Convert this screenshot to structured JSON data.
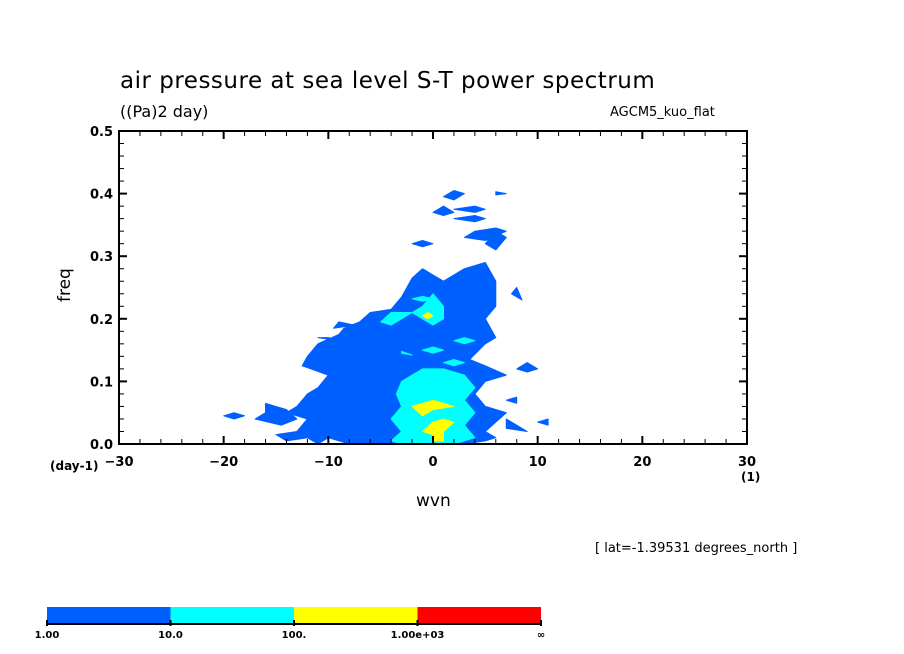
{
  "chart_data": {
    "type": "heatmap",
    "title": "air pressure at sea level S-T power spectrum",
    "units": "((Pa)2 day)",
    "model": "AGCM5_kuo_flat",
    "annotation": "[ lat=-1.39531 degrees_north ]",
    "xlabel": "wvn",
    "ylabel": "freq",
    "x_unit": "(1)",
    "y_unit": "(day-1)",
    "xlim": [
      -30,
      30
    ],
    "ylim": [
      0.0,
      0.5
    ],
    "x_ticks": [
      -30,
      -20,
      -10,
      0,
      10,
      20,
      30
    ],
    "x_tick_labels": [
      "−30",
      "−20",
      "−10",
      "0",
      "10",
      "20",
      "30"
    ],
    "y_ticks": [
      0.0,
      0.1,
      0.2,
      0.3,
      0.4,
      0.5
    ],
    "y_tick_labels": [
      "0.0",
      "0.1",
      "0.2",
      "0.3",
      "0.4",
      "0.5"
    ],
    "x_minor_step": 2,
    "y_minor_step": 0.02,
    "levels": [
      1.0,
      10.0,
      100.0,
      1000.0
    ],
    "colorbar": {
      "labels": [
        "1.00",
        "10.0",
        "100.",
        "1.00e+03",
        "∞"
      ],
      "colors": [
        "#0060ff",
        "#00ffff",
        "#ffff00",
        "#ff0000"
      ]
    },
    "regions": [
      {
        "level": "1-10",
        "color": "#0060ff",
        "polys": [
          [
            [
              -11,
              0
            ],
            [
              -10,
              0.01
            ],
            [
              -8,
              0.0
            ],
            [
              -5,
              0.0
            ],
            [
              -3,
              0.0
            ],
            [
              3,
              0.0
            ],
            [
              5,
              0.005
            ],
            [
              6,
              0.01
            ],
            [
              5,
              0.02
            ],
            [
              6,
              0.035
            ],
            [
              7,
              0.05
            ],
            [
              5,
              0.06
            ],
            [
              4,
              0.08
            ],
            [
              5,
              0.1
            ],
            [
              7,
              0.11
            ],
            [
              5,
              0.125
            ],
            [
              3.5,
              0.135
            ],
            [
              5,
              0.16
            ],
            [
              6,
              0.17
            ],
            [
              5,
              0.2
            ],
            [
              6,
              0.22
            ],
            [
              6,
              0.26
            ],
            [
              5,
              0.29
            ],
            [
              3,
              0.28
            ],
            [
              1,
              0.26
            ],
            [
              0,
              0.27
            ],
            [
              -1,
              0.28
            ],
            [
              -2,
              0.265
            ],
            [
              -3,
              0.235
            ],
            [
              -4,
              0.215
            ],
            [
              -6,
              0.21
            ],
            [
              -7,
              0.195
            ],
            [
              -8.5,
              0.185
            ],
            [
              -9,
              0.175
            ],
            [
              -11,
              0.16
            ],
            [
              -12,
              0.14
            ],
            [
              -12.5,
              0.125
            ],
            [
              -10,
              0.11
            ],
            [
              -11,
              0.09
            ],
            [
              -12,
              0.08
            ],
            [
              -13,
              0.06
            ],
            [
              -14,
              0.05
            ],
            [
              -12,
              0.04
            ],
            [
              -13,
              0.02
            ],
            [
              -15,
              0.015
            ],
            [
              -14,
              0.005
            ],
            [
              -12,
              0.01
            ]
          ],
          [
            [
              -16,
              0.065
            ],
            [
              -14,
              0.055
            ],
            [
              -13,
              0.04
            ],
            [
              -14.5,
              0.03
            ],
            [
              -17,
              0.04
            ],
            [
              -16,
              0.05
            ]
          ],
          [
            [
              -9.5,
              0.185
            ],
            [
              -7.5,
              0.19
            ],
            [
              -9,
              0.195
            ]
          ],
          [
            [
              -6,
              0.12
            ],
            [
              -4,
              0.115
            ],
            [
              -5,
              0.1
            ],
            [
              -7,
              0.105
            ]
          ],
          [
            [
              7,
              0.33
            ],
            [
              6,
              0.34
            ],
            [
              5,
              0.32
            ],
            [
              6,
              0.31
            ]
          ],
          [
            [
              3,
              0.33
            ],
            [
              5,
              0.325
            ],
            [
              7,
              0.34
            ],
            [
              6,
              0.345
            ],
            [
              4,
              0.34
            ]
          ],
          [
            [
              2,
              0.36
            ],
            [
              4,
              0.355
            ],
            [
              5,
              0.36
            ],
            [
              4,
              0.365
            ]
          ],
          [
            [
              -2,
              0.32
            ],
            [
              -1,
              0.315
            ],
            [
              0,
              0.32
            ],
            [
              -1,
              0.325
            ]
          ],
          [
            [
              2,
              0.375
            ],
            [
              4,
              0.37
            ],
            [
              5,
              0.375
            ],
            [
              4,
              0.38
            ]
          ],
          [
            [
              0,
              0.37
            ],
            [
              1,
              0.365
            ],
            [
              2,
              0.37
            ],
            [
              1,
              0.38
            ]
          ],
          [
            [
              1,
              0.395
            ],
            [
              2,
              0.39
            ],
            [
              3,
              0.4
            ],
            [
              2,
              0.405
            ]
          ],
          [
            [
              6,
              0.398
            ],
            [
              7,
              0.4
            ],
            [
              6,
              0.403
            ]
          ],
          [
            [
              7.5,
              0.24
            ],
            [
              8.5,
              0.23
            ],
            [
              8,
              0.25
            ]
          ],
          [
            [
              9,
              0.13
            ],
            [
              8,
              0.12
            ],
            [
              9,
              0.115
            ],
            [
              10,
              0.12
            ]
          ],
          [
            [
              7,
              0.07
            ],
            [
              8,
              0.065
            ],
            [
              8,
              0.075
            ]
          ],
          [
            [
              10,
              0.035
            ],
            [
              11,
              0.03
            ],
            [
              11,
              0.04
            ]
          ],
          [
            [
              7,
              0.04
            ],
            [
              8,
              0.03
            ],
            [
              9,
              0.02
            ],
            [
              7,
              0.025
            ]
          ],
          [
            [
              -19,
              0.05
            ],
            [
              -18,
              0.045
            ],
            [
              -19,
              0.04
            ],
            [
              -20,
              0.045
            ]
          ],
          [
            [
              -11,
              0.17
            ],
            [
              -9,
              0.165
            ],
            [
              -10,
              0.17
            ]
          ]
        ]
      },
      {
        "level": "10-100",
        "color": "#00ffff",
        "polys": [
          [
            [
              -3,
              0.0
            ],
            [
              2,
              0.0
            ],
            [
              4,
              0.01
            ],
            [
              3,
              0.03
            ],
            [
              4,
              0.05
            ],
            [
              3,
              0.07
            ],
            [
              4,
              0.09
            ],
            [
              3,
              0.11
            ],
            [
              1,
              0.12
            ],
            [
              -1,
              0.12
            ],
            [
              -2,
              0.11
            ],
            [
              -3,
              0.1
            ],
            [
              -3.5,
              0.08
            ],
            [
              -3,
              0.06
            ],
            [
              -4,
              0.04
            ],
            [
              -3,
              0.02
            ],
            [
              -4,
              0.005
            ]
          ],
          [
            [
              -1,
              0.2
            ],
            [
              0,
              0.19
            ],
            [
              1,
              0.2
            ],
            [
              1,
              0.22
            ],
            [
              0,
              0.24
            ],
            [
              -1,
              0.22
            ],
            [
              -2,
              0.21
            ]
          ],
          [
            [
              -4,
              0.19
            ],
            [
              -3,
              0.2
            ],
            [
              -2,
              0.21
            ],
            [
              -4,
              0.21
            ],
            [
              -5,
              0.195
            ]
          ],
          [
            [
              -2,
              0.232
            ],
            [
              -1,
              0.228
            ],
            [
              0,
              0.232
            ],
            [
              -1,
              0.236
            ]
          ],
          [
            [
              -1,
              0.15
            ],
            [
              0,
              0.145
            ],
            [
              1,
              0.15
            ],
            [
              0,
              0.155
            ]
          ],
          [
            [
              -3,
              0.145
            ],
            [
              -2,
              0.142
            ],
            [
              -3,
              0.148
            ]
          ],
          [
            [
              1,
              0.13
            ],
            [
              2,
              0.125
            ],
            [
              3,
              0.13
            ],
            [
              2,
              0.135
            ]
          ],
          [
            [
              2,
              0.165
            ],
            [
              3,
              0.16
            ],
            [
              4,
              0.165
            ],
            [
              3,
              0.17
            ]
          ]
        ]
      },
      {
        "level": "100-1000",
        "color": "#ffff00",
        "polys": [
          [
            [
              -1,
              0.065
            ],
            [
              0,
              0.07
            ],
            [
              1,
              0.065
            ],
            [
              2,
              0.06
            ],
            [
              0,
              0.055
            ],
            [
              -1,
              0.045
            ],
            [
              -2,
              0.06
            ]
          ],
          [
            [
              0,
              0.005
            ],
            [
              1,
              0.005
            ],
            [
              1,
              0.02
            ],
            [
              2,
              0.035
            ],
            [
              1,
              0.04
            ],
            [
              0,
              0.035
            ],
            [
              -1,
              0.02
            ],
            [
              0,
              0.015
            ]
          ],
          [
            [
              -1,
              0.205
            ],
            [
              -0.5,
              0.2
            ],
            [
              0,
              0.205
            ],
            [
              -0.5,
              0.21
            ]
          ]
        ]
      }
    ]
  }
}
